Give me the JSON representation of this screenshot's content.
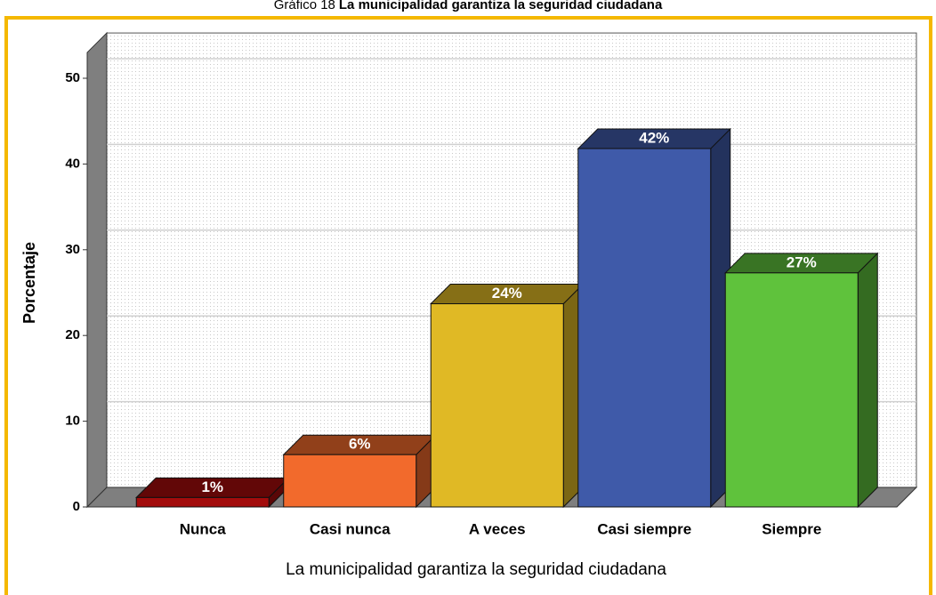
{
  "chart_data": {
    "type": "bar3d",
    "title_label": "Gráfico 18",
    "title": "La municipalidad garantiza la seguridad ciudadana",
    "xlabel": "La municipalidad garantiza la seguridad ciudadana",
    "ylabel": "Porcentaje",
    "categories": [
      "Nunca",
      "Casi nunca",
      "A veces",
      "Casi siempre",
      "Siempre"
    ],
    "values": [
      1.1,
      6.1,
      23.7,
      41.8,
      27.3
    ],
    "value_labels": [
      "1%",
      "6%",
      "24%",
      "42%",
      "27%"
    ],
    "colors": [
      "#a30c0c",
      "#f26a2c",
      "#e0b925",
      "#3f5aa9",
      "#5fc23c"
    ],
    "ylim": [
      0,
      53
    ],
    "yticks": [
      0,
      10,
      20,
      30,
      40,
      50
    ],
    "grid": true
  }
}
